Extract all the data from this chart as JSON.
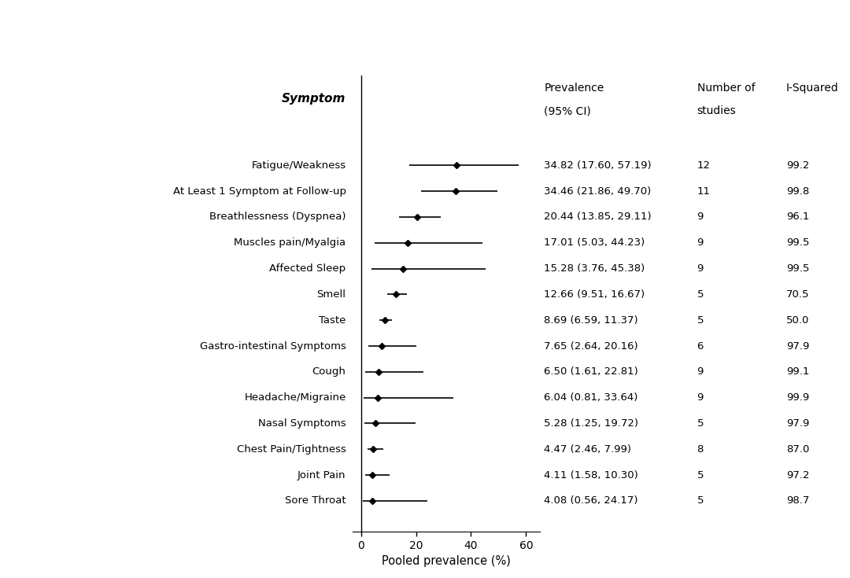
{
  "symptoms": [
    "Fatigue/Weakness",
    "At Least 1 Symptom at Follow-up",
    "Breathlessness (Dyspnea)",
    "Muscles pain/Myalgia",
    "Affected Sleep",
    "Smell",
    "Taste",
    "Gastro-intestinal Symptoms",
    "Cough",
    "Headache/Migraine",
    "Nasal Symptoms",
    "Chest Pain/Tightness",
    "Joint Pain",
    "Sore Throat"
  ],
  "estimates": [
    34.82,
    34.46,
    20.44,
    17.01,
    15.28,
    12.66,
    8.69,
    7.65,
    6.5,
    6.04,
    5.28,
    4.47,
    4.11,
    4.08
  ],
  "ci_low": [
    17.6,
    21.86,
    13.85,
    5.03,
    3.76,
    9.51,
    6.59,
    2.64,
    1.61,
    0.81,
    1.25,
    2.46,
    1.58,
    0.56
  ],
  "ci_high": [
    57.19,
    49.7,
    29.11,
    44.23,
    45.38,
    16.67,
    11.37,
    20.16,
    22.81,
    33.64,
    19.72,
    7.99,
    10.3,
    24.17
  ],
  "n_studies": [
    12,
    11,
    9,
    9,
    9,
    5,
    5,
    6,
    9,
    9,
    5,
    8,
    5,
    5
  ],
  "i_squared": [
    99.2,
    99.8,
    96.1,
    99.5,
    99.5,
    70.5,
    50.0,
    97.9,
    99.1,
    99.9,
    97.9,
    87.0,
    97.2,
    98.7
  ],
  "ci_labels": [
    "34.82 (17.60, 57.19)",
    "34.46 (21.86, 49.70)",
    "20.44 (13.85, 29.11)",
    "17.01 (5.03, 44.23)",
    "15.28 (3.76, 45.38)",
    "12.66 (9.51, 16.67)",
    "8.69 (6.59, 11.37)",
    "7.65 (2.64, 20.16)",
    "6.50 (1.61, 22.81)",
    "6.04 (0.81, 33.64)",
    "5.28 (1.25, 19.72)",
    "4.47 (2.46, 7.99)",
    "4.11 (1.58, 10.30)",
    "4.08 (0.56, 24.17)"
  ],
  "xlabel": "Pooled prevalence (%)",
  "symptom_label": "Symptom",
  "prevalence_header1": "Prevalence",
  "prevalence_header2": "(95% CI)",
  "studies_header1": "Number of",
  "studies_header2": "studies",
  "isquared_header": "I-Squared",
  "plot_xlim": [
    -3,
    65
  ],
  "xticks": [
    0,
    20,
    40,
    60
  ],
  "bg_color": "#ffffff",
  "line_color": "#000000",
  "marker_color": "#000000",
  "text_color": "#000000",
  "label_fontsize": 9.5,
  "header_fontsize": 10,
  "annot_fontsize": 9.5
}
